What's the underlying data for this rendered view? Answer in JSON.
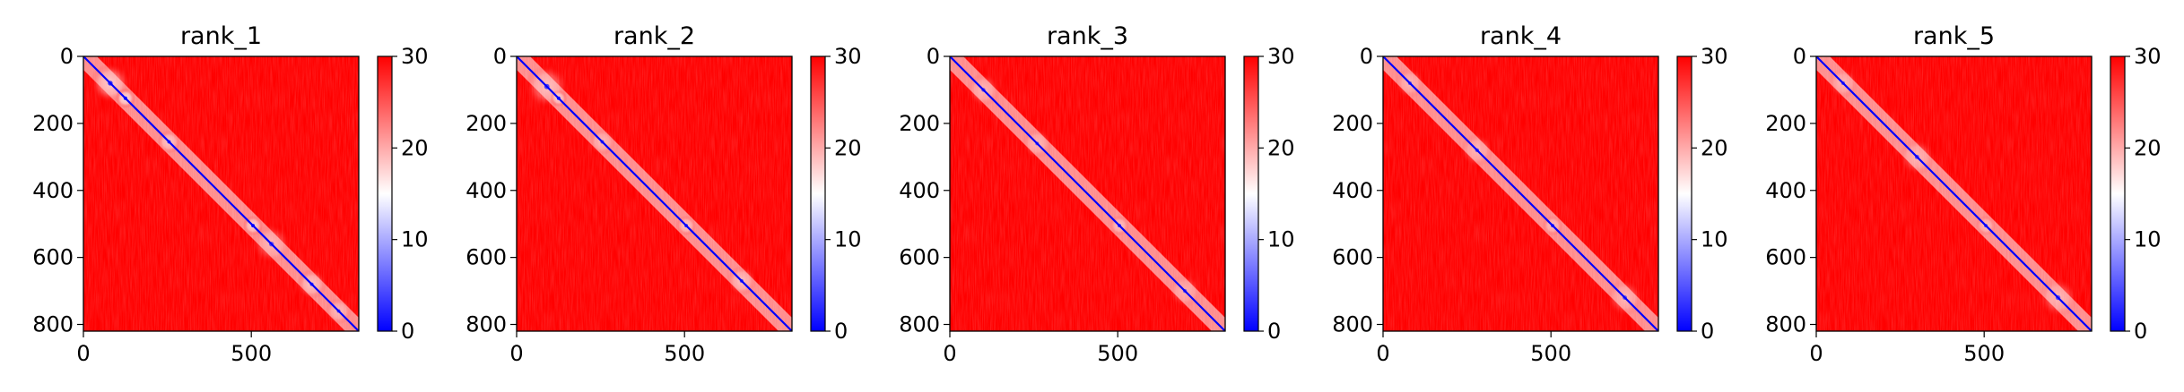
{
  "chart_data": [
    {
      "type": "heatmap",
      "title": "rank_1",
      "x_ticks": [
        0,
        500
      ],
      "y_ticks": [
        0,
        200,
        400,
        600,
        800
      ],
      "xlim": [
        0,
        820
      ],
      "ylim": [
        820,
        0
      ],
      "colorbar": {
        "min": 0,
        "max": 30,
        "ticks": [
          0,
          10,
          20,
          30
        ],
        "colormap": "bwr",
        "colors": [
          "#0000ff",
          "#ffffff",
          "#ff0000"
        ]
      },
      "low_distance_regions": [
        {
          "center": [
            80,
            80
          ],
          "size": 120,
          "strength": 0.55
        },
        {
          "center": [
            125,
            125
          ],
          "size": 60,
          "strength": 0.8
        },
        {
          "center": [
            255,
            255
          ],
          "size": 70,
          "strength": 0.55
        },
        {
          "center": [
            505,
            505
          ],
          "size": 60,
          "strength": 0.7
        },
        {
          "center": [
            560,
            560
          ],
          "size": 120,
          "strength": 0.35
        },
        {
          "center": [
            680,
            680
          ],
          "size": 90,
          "strength": 0.5
        },
        {
          "center": [
            760,
            760
          ],
          "size": 80,
          "strength": 0.4
        }
      ]
    },
    {
      "type": "heatmap",
      "title": "rank_2",
      "x_ticks": [
        0,
        500
      ],
      "y_ticks": [
        0,
        200,
        400,
        600,
        800
      ],
      "xlim": [
        0,
        820
      ],
      "ylim": [
        820,
        0
      ],
      "colorbar": {
        "min": 0,
        "max": 30,
        "ticks": [
          0,
          10,
          20,
          30
        ],
        "colormap": "bwr",
        "colors": [
          "#0000ff",
          "#ffffff",
          "#ff0000"
        ]
      },
      "low_distance_regions": [
        {
          "center": [
            90,
            90
          ],
          "size": 130,
          "strength": 0.45
        },
        {
          "center": [
            125,
            125
          ],
          "size": 50,
          "strength": 0.7
        },
        {
          "center": [
            255,
            255
          ],
          "size": 80,
          "strength": 0.4
        },
        {
          "center": [
            505,
            505
          ],
          "size": 60,
          "strength": 0.55
        },
        {
          "center": [
            670,
            670
          ],
          "size": 90,
          "strength": 0.45
        }
      ]
    },
    {
      "type": "heatmap",
      "title": "rank_3",
      "x_ticks": [
        0,
        500
      ],
      "y_ticks": [
        0,
        200,
        400,
        600,
        800
      ],
      "xlim": [
        0,
        820
      ],
      "ylim": [
        820,
        0
      ],
      "colorbar": {
        "min": 0,
        "max": 30,
        "ticks": [
          0,
          10,
          20,
          30
        ],
        "colormap": "bwr",
        "colors": [
          "#0000ff",
          "#ffffff",
          "#ff0000"
        ]
      },
      "low_distance_regions": [
        {
          "center": [
            100,
            100
          ],
          "size": 100,
          "strength": 0.35
        },
        {
          "center": [
            260,
            260
          ],
          "size": 90,
          "strength": 0.35
        },
        {
          "center": [
            505,
            505
          ],
          "size": 60,
          "strength": 0.5
        },
        {
          "center": [
            700,
            700
          ],
          "size": 100,
          "strength": 0.3
        }
      ]
    },
    {
      "type": "heatmap",
      "title": "rank_4",
      "x_ticks": [
        0,
        500
      ],
      "y_ticks": [
        0,
        200,
        400,
        600,
        800
      ],
      "xlim": [
        0,
        820
      ],
      "ylim": [
        820,
        0
      ],
      "colorbar": {
        "min": 0,
        "max": 30,
        "ticks": [
          0,
          10,
          20,
          30
        ],
        "colormap": "bwr",
        "colors": [
          "#0000ff",
          "#ffffff",
          "#ff0000"
        ]
      },
      "low_distance_regions": [
        {
          "center": [
            80,
            80
          ],
          "size": 90,
          "strength": 0.35
        },
        {
          "center": [
            280,
            280
          ],
          "size": 100,
          "strength": 0.35
        },
        {
          "center": [
            505,
            505
          ],
          "size": 60,
          "strength": 0.5
        },
        {
          "center": [
            720,
            720
          ],
          "size": 110,
          "strength": 0.35
        }
      ]
    },
    {
      "type": "heatmap",
      "title": "rank_5",
      "x_ticks": [
        0,
        500
      ],
      "y_ticks": [
        0,
        200,
        400,
        600,
        800
      ],
      "xlim": [
        0,
        820
      ],
      "ylim": [
        820,
        0
      ],
      "colorbar": {
        "min": 0,
        "max": 30,
        "ticks": [
          0,
          10,
          20,
          30
        ],
        "colormap": "bwr",
        "colors": [
          "#0000ff",
          "#ffffff",
          "#ff0000"
        ]
      },
      "low_distance_regions": [
        {
          "center": [
            80,
            80
          ],
          "size": 90,
          "strength": 0.35
        },
        {
          "center": [
            300,
            300
          ],
          "size": 110,
          "strength": 0.35
        },
        {
          "center": [
            505,
            505
          ],
          "size": 60,
          "strength": 0.45
        },
        {
          "center": [
            720,
            720
          ],
          "size": 120,
          "strength": 0.35
        }
      ]
    }
  ]
}
